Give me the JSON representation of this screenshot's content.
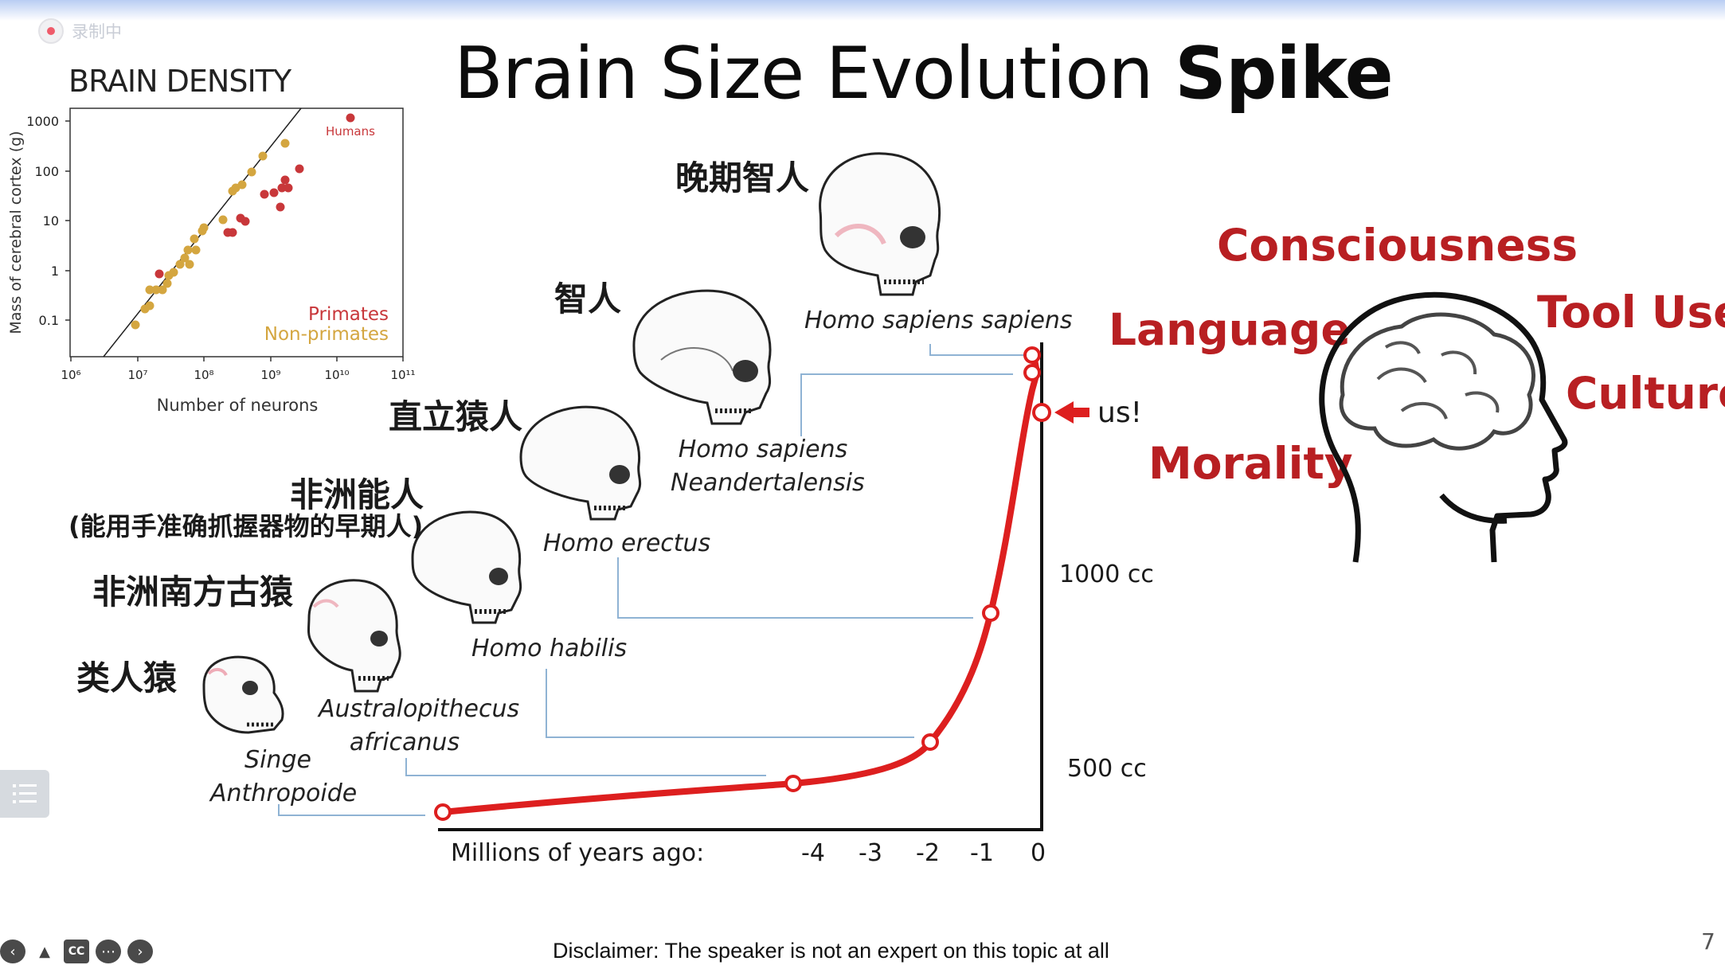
{
  "recording": {
    "label": "录制中"
  },
  "title": {
    "plain": "Brain Size Evolution ",
    "bold": "Spike"
  },
  "brain_density": {
    "title": "BRAIN DENSITY",
    "y_label": "Mass of cerebral cortex (g)",
    "x_label": "Number of neurons",
    "y_ticks": [
      "1000",
      "100",
      "10",
      "1",
      "0.1"
    ],
    "x_ticks": [
      "10⁶",
      "10⁷",
      "10⁸",
      "10⁹",
      "10¹⁰",
      "10¹¹"
    ],
    "legend_primates": "Primates",
    "legend_nonprimates": "Non-primates",
    "humans_label": "Humans",
    "colors": {
      "primates": "#c8373a",
      "nonprimates": "#d4a640"
    }
  },
  "stages": [
    {
      "cn": "晚期智人",
      "sp": [
        "Homo sapiens sapiens"
      ]
    },
    {
      "cn": "智人",
      "sp": [
        "Homo sapiens",
        "Neandertalensis"
      ]
    },
    {
      "cn": "直立猿人",
      "sp": [
        "Homo erectus"
      ]
    },
    {
      "cn": "非洲能人",
      "cn_note": "(能用手准确抓握器物的早期人)",
      "sp": [
        "Homo habilis"
      ]
    },
    {
      "cn": "非洲南方古猿",
      "sp": [
        "Australopithecus",
        "africanus"
      ]
    },
    {
      "cn": "类人猿",
      "sp": [
        "Singe",
        "Anthropoide"
      ]
    }
  ],
  "evolution_chart": {
    "x_title": "Millions of years ago:",
    "x_ticks": [
      "-4",
      "-3",
      "-2",
      "-1",
      "0"
    ],
    "y_labels": [
      "1000 cc",
      "500 cc"
    ],
    "us_label": "us!",
    "color": "#dd1f1f"
  },
  "traits": [
    "Consciousness",
    "Tool Use",
    "Language",
    "Culture",
    "Morality"
  ],
  "footer": {
    "disclaimer": "Disclaimer: The speaker is not an expert on this topic at all",
    "page_number": "7"
  }
}
